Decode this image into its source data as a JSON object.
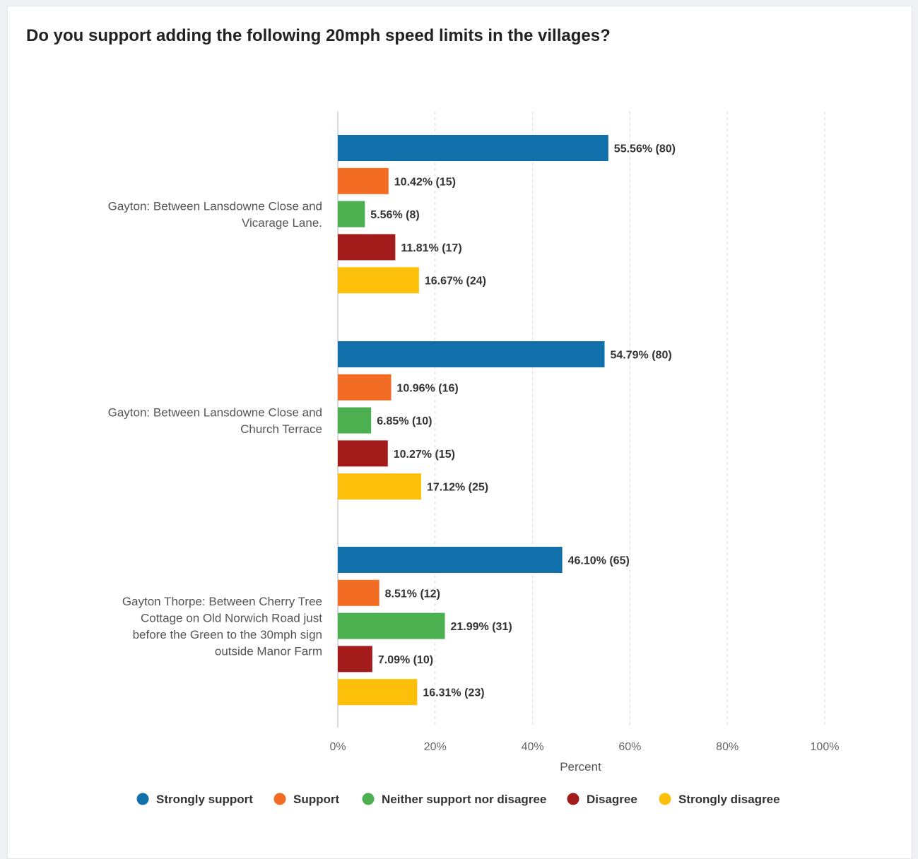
{
  "title": "Do you support adding the following 20mph speed limits in the villages?",
  "chart_data": {
    "type": "bar",
    "orientation": "horizontal",
    "title": "Do you support adding the following 20mph speed limits in the villages?",
    "xlabel": "Percent",
    "ylabel": "",
    "xlim": [
      0,
      100
    ],
    "x_ticks": [
      "0%",
      "20%",
      "40%",
      "60%",
      "80%",
      "100%"
    ],
    "grid": "vertical dashed",
    "legend_position": "bottom",
    "categories": [
      [
        "Gayton: Between Lansdowne Close and",
        "Vicarage Lane."
      ],
      [
        "Gayton: Between Lansdowne Close and",
        "Church Terrace"
      ],
      [
        "Gayton Thorpe: Between Cherry Tree",
        "Cottage on Old Norwich Road just",
        "before the Green to the 30mph sign",
        "outside Manor Farm"
      ]
    ],
    "series": [
      {
        "name": "Strongly support",
        "color": "#1170aa",
        "values": [
          55.56,
          54.79,
          46.1
        ],
        "counts": [
          80,
          80,
          65
        ],
        "labels": [
          "55.56% (80)",
          "54.79% (80)",
          "46.10% (65)"
        ]
      },
      {
        "name": "Support",
        "color": "#f26c23",
        "values": [
          10.42,
          10.96,
          8.51
        ],
        "counts": [
          15,
          16,
          12
        ],
        "labels": [
          "10.42% (15)",
          "10.96% (16)",
          "8.51% (12)"
        ]
      },
      {
        "name": "Neither support nor disagree",
        "color": "#4caf50",
        "values": [
          5.56,
          6.85,
          21.99
        ],
        "counts": [
          8,
          10,
          31
        ],
        "labels": [
          "5.56% (8)",
          "6.85% (10)",
          "21.99% (31)"
        ]
      },
      {
        "name": "Disagree",
        "color": "#a31b1b",
        "values": [
          11.81,
          10.27,
          7.09
        ],
        "counts": [
          17,
          15,
          10
        ],
        "labels": [
          "11.81% (17)",
          "10.27% (15)",
          "7.09% (10)"
        ]
      },
      {
        "name": "Strongly disagree",
        "color": "#fcbf0a",
        "values": [
          16.67,
          17.12,
          16.31
        ],
        "counts": [
          24,
          25,
          23
        ],
        "labels": [
          "16.67% (24)",
          "17.12% (25)",
          "16.31% (23)"
        ]
      }
    ]
  }
}
